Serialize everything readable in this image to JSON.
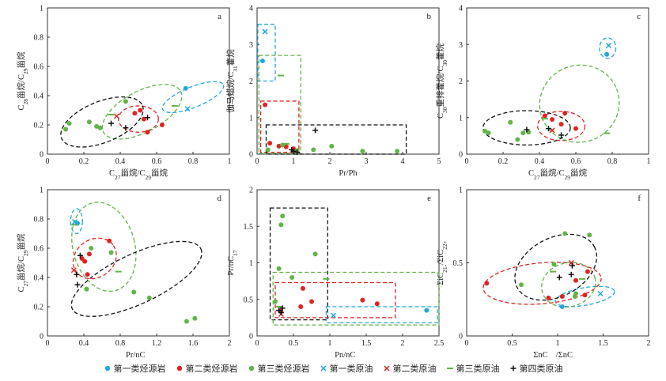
{
  "colors": {
    "type1": "#1ea7e1",
    "type2": "#e02424",
    "type3": "#62b446",
    "type4": "#111111"
  },
  "legend": [
    {
      "label": "第一类烃源岩",
      "marker": "dot",
      "color": "#1ea7e1"
    },
    {
      "label": "第二类烃源岩",
      "marker": "dot",
      "color": "#e02424"
    },
    {
      "label": "第三类烃源岩",
      "marker": "dot",
      "color": "#62b446"
    },
    {
      "label": "第一类原油",
      "marker": "x",
      "color": "#1ea7e1"
    },
    {
      "label": "第二类原油",
      "marker": "x",
      "color": "#e02424"
    },
    {
      "label": "第三类原油",
      "marker": "dash",
      "color": "#62b446"
    },
    {
      "label": "第四类原油",
      "marker": "plus",
      "color": "#111111"
    }
  ],
  "chart_data": [
    {
      "panel": "a",
      "type": "scatter",
      "xlabel": "C27甾烷/C29甾烷",
      "ylabel": "C28甾烷/C29甾烷",
      "xlim": [
        0,
        1
      ],
      "ylim": [
        0,
        1
      ],
      "xticks": [
        "0",
        "0.2",
        "0.4",
        "0.6",
        "0.8",
        "1"
      ],
      "yticks": [
        "0",
        "0.2",
        "0.4",
        "0.6",
        "0.8",
        "1"
      ],
      "points": [
        {
          "s": "type1",
          "m": "dot",
          "x": 0.76,
          "y": 0.45
        },
        {
          "s": "type1",
          "m": "x",
          "x": 0.77,
          "y": 0.31
        },
        {
          "s": "type2",
          "m": "dot",
          "x": 0.48,
          "y": 0.28
        },
        {
          "s": "type2",
          "m": "dot",
          "x": 0.51,
          "y": 0.3
        },
        {
          "s": "type2",
          "m": "dot",
          "x": 0.53,
          "y": 0.24
        },
        {
          "s": "type2",
          "m": "dot",
          "x": 0.63,
          "y": 0.2
        },
        {
          "s": "type2",
          "m": "dot",
          "x": 0.55,
          "y": 0.15
        },
        {
          "s": "type2",
          "m": "x",
          "x": 0.38,
          "y": 0.26
        },
        {
          "s": "type3",
          "m": "dot",
          "x": 0.1,
          "y": 0.17
        },
        {
          "s": "type3",
          "m": "dot",
          "x": 0.12,
          "y": 0.21
        },
        {
          "s": "type3",
          "m": "dot",
          "x": 0.23,
          "y": 0.22
        },
        {
          "s": "type3",
          "m": "dot",
          "x": 0.27,
          "y": 0.19
        },
        {
          "s": "type3",
          "m": "dot",
          "x": 0.29,
          "y": 0.18
        },
        {
          "s": "type3",
          "m": "dot",
          "x": 0.43,
          "y": 0.36
        },
        {
          "s": "type3",
          "m": "dash",
          "x": 0.35,
          "y": 0.27
        },
        {
          "s": "type3",
          "m": "dash",
          "x": 0.7,
          "y": 0.33
        },
        {
          "s": "type4",
          "m": "plus",
          "x": 0.35,
          "y": 0.21
        },
        {
          "s": "type4",
          "m": "plus",
          "x": 0.43,
          "y": 0.18
        },
        {
          "s": "type4",
          "m": "plus",
          "x": 0.55,
          "y": 0.25
        }
      ],
      "ellipses": [
        {
          "s": "type1",
          "cx": 0.8,
          "cy": 0.39,
          "rx": 0.18,
          "ry": 0.07,
          "rot": -22
        },
        {
          "s": "type2",
          "cx": 0.5,
          "cy": 0.24,
          "rx": 0.11,
          "ry": 0.09,
          "rot": 0
        },
        {
          "s": "type3",
          "cx": 0.52,
          "cy": 0.29,
          "rx": 0.24,
          "ry": 0.14,
          "rot": -28
        },
        {
          "s": "type4",
          "cx": 0.3,
          "cy": 0.22,
          "rx": 0.24,
          "ry": 0.14,
          "rot": -22
        }
      ]
    },
    {
      "panel": "b",
      "type": "scatter",
      "xlabel": "Pr/Ph",
      "ylabel": "伽马蜡烷/C31藿烷",
      "xlim": [
        0,
        5
      ],
      "ylim": [
        0,
        4
      ],
      "xticks": [
        "0",
        "1",
        "2",
        "3",
        "4",
        "5"
      ],
      "yticks": [
        "0",
        "1",
        "2",
        "3",
        "4"
      ],
      "points": [
        {
          "s": "type1",
          "m": "dot",
          "x": 0.15,
          "y": 2.55
        },
        {
          "s": "type1",
          "m": "x",
          "x": 0.22,
          "y": 3.35
        },
        {
          "s": "type2",
          "m": "dot",
          "x": 0.22,
          "y": 1.35
        },
        {
          "s": "type2",
          "m": "dot",
          "x": 0.35,
          "y": 0.3
        },
        {
          "s": "type2",
          "m": "dot",
          "x": 0.6,
          "y": 0.22
        },
        {
          "s": "type2",
          "m": "dot",
          "x": 0.8,
          "y": 0.2
        },
        {
          "s": "type2",
          "m": "dot",
          "x": 1.0,
          "y": 0.15
        },
        {
          "s": "type3",
          "m": "dot",
          "x": 0.3,
          "y": 0.12
        },
        {
          "s": "type3",
          "m": "dot",
          "x": 0.7,
          "y": 0.25
        },
        {
          "s": "type3",
          "m": "dot",
          "x": 1.1,
          "y": 0.1
        },
        {
          "s": "type3",
          "m": "dot",
          "x": 1.55,
          "y": 0.12
        },
        {
          "s": "type3",
          "m": "dot",
          "x": 2.05,
          "y": 0.22
        },
        {
          "s": "type3",
          "m": "dot",
          "x": 2.9,
          "y": 0.08
        },
        {
          "s": "type3",
          "m": "dot",
          "x": 3.85,
          "y": 0.08
        },
        {
          "s": "type3",
          "m": "dash",
          "x": 0.65,
          "y": 2.15
        },
        {
          "s": "type3",
          "m": "dash",
          "x": 0.8,
          "y": 0.28
        },
        {
          "s": "type4",
          "m": "plus",
          "x": 0.95,
          "y": 0.12
        },
        {
          "s": "type4",
          "m": "plus",
          "x": 1.0,
          "y": 0.08
        },
        {
          "s": "type4",
          "m": "plus",
          "x": 1.1,
          "y": 0.05
        },
        {
          "s": "type4",
          "m": "plus",
          "x": 1.6,
          "y": 0.65
        }
      ],
      "boxes": [
        {
          "s": "type1",
          "x0": 0.02,
          "x1": 0.5,
          "y0": 2.0,
          "y1": 3.55
        },
        {
          "s": "type3",
          "x0": 0.05,
          "x1": 1.2,
          "y0": 0.02,
          "y1": 2.7
        },
        {
          "s": "type2",
          "x0": 0.1,
          "x1": 1.15,
          "y0": 0.05,
          "y1": 1.45
        },
        {
          "s": "type4",
          "x0": 0.25,
          "x1": 4.1,
          "y0": 0.0,
          "y1": 0.8
        }
      ]
    },
    {
      "panel": "c",
      "type": "scatter",
      "xlabel": "C27甾烷/C29甾烷",
      "ylabel": "C30重排藿烷/C30藿烷",
      "xlim": [
        0,
        1
      ],
      "ylim": [
        0,
        4
      ],
      "xticks": [
        "0",
        "0.2",
        "0.4",
        "0.6",
        "0.8",
        "1"
      ],
      "yticks": [
        "0",
        "1",
        "2",
        "3",
        "4"
      ],
      "points": [
        {
          "s": "type1",
          "m": "dot",
          "x": 0.77,
          "y": 2.73
        },
        {
          "s": "type1",
          "m": "x",
          "x": 0.78,
          "y": 2.97
        },
        {
          "s": "type2",
          "m": "dot",
          "x": 0.43,
          "y": 1.05
        },
        {
          "s": "type2",
          "m": "dot",
          "x": 0.47,
          "y": 0.95
        },
        {
          "s": "type2",
          "m": "dot",
          "x": 0.52,
          "y": 0.82
        },
        {
          "s": "type2",
          "m": "dot",
          "x": 0.54,
          "y": 1.12
        },
        {
          "s": "type2",
          "m": "dot",
          "x": 0.6,
          "y": 0.7
        },
        {
          "s": "type2",
          "m": "x",
          "x": 0.47,
          "y": 0.65
        },
        {
          "s": "type3",
          "m": "dot",
          "x": 0.1,
          "y": 0.63
        },
        {
          "s": "type3",
          "m": "dot",
          "x": 0.12,
          "y": 0.58
        },
        {
          "s": "type3",
          "m": "dot",
          "x": 0.24,
          "y": 0.87
        },
        {
          "s": "type3",
          "m": "dot",
          "x": 0.28,
          "y": 0.4
        },
        {
          "s": "type3",
          "m": "dot",
          "x": 0.31,
          "y": 0.58
        },
        {
          "s": "type3",
          "m": "dot",
          "x": 0.34,
          "y": 0.6
        },
        {
          "s": "type3",
          "m": "dash",
          "x": 0.43,
          "y": 0.97
        },
        {
          "s": "type3",
          "m": "dash",
          "x": 0.77,
          "y": 0.57
        },
        {
          "s": "type4",
          "m": "plus",
          "x": 0.33,
          "y": 0.67
        },
        {
          "s": "type4",
          "m": "plus",
          "x": 0.45,
          "y": 0.7
        },
        {
          "s": "type4",
          "m": "plus",
          "x": 0.52,
          "y": 0.52
        }
      ],
      "ellipses": [
        {
          "s": "type1",
          "cx": 0.775,
          "cy": 2.9,
          "rx": 0.045,
          "ry": 0.28,
          "rot": 0
        },
        {
          "s": "type2",
          "cx": 0.52,
          "cy": 0.77,
          "rx": 0.13,
          "ry": 0.4,
          "rot": 0
        },
        {
          "s": "type3",
          "cx": 0.62,
          "cy": 1.38,
          "rx": 0.22,
          "ry": 1.05,
          "rot": -22
        },
        {
          "s": "type4",
          "cx": 0.33,
          "cy": 0.72,
          "rx": 0.24,
          "ry": 0.47,
          "rot": 0
        }
      ]
    },
    {
      "panel": "d",
      "type": "scatter",
      "xlabel": "Pr/nC17",
      "ylabel": "C27甾烷/C29甾烷",
      "xlim": [
        0,
        2
      ],
      "ylim": [
        0,
        1
      ],
      "xticks": [
        "0",
        "0.4",
        "0.8",
        "1.2",
        "1.6",
        "2"
      ],
      "yticks": [
        "0",
        "0.2",
        "0.4",
        "0.6",
        "0.8",
        "1"
      ],
      "points": [
        {
          "s": "type1",
          "m": "dot",
          "x": 0.33,
          "y": 0.77
        },
        {
          "s": "type1",
          "m": "x",
          "x": 0.3,
          "y": 0.78
        },
        {
          "s": "type2",
          "m": "dot",
          "x": 0.38,
          "y": 0.53
        },
        {
          "s": "type2",
          "m": "dot",
          "x": 0.41,
          "y": 0.51
        },
        {
          "s": "type2",
          "m": "dot",
          "x": 0.44,
          "y": 0.42
        },
        {
          "s": "type2",
          "m": "dot",
          "x": 0.46,
          "y": 0.56
        },
        {
          "s": "type2",
          "m": "dot",
          "x": 0.68,
          "y": 0.65
        },
        {
          "s": "type2",
          "m": "x",
          "x": 0.29,
          "y": 0.45
        },
        {
          "s": "type3",
          "m": "dot",
          "x": 0.43,
          "y": 0.32
        },
        {
          "s": "type3",
          "m": "dot",
          "x": 0.48,
          "y": 0.6
        },
        {
          "s": "type3",
          "m": "dot",
          "x": 0.7,
          "y": 0.57
        },
        {
          "s": "type3",
          "m": "dot",
          "x": 0.95,
          "y": 0.3
        },
        {
          "s": "type3",
          "m": "dot",
          "x": 1.12,
          "y": 0.26
        },
        {
          "s": "type3",
          "m": "dot",
          "x": 1.53,
          "y": 0.1
        },
        {
          "s": "type3",
          "m": "dot",
          "x": 1.62,
          "y": 0.12
        },
        {
          "s": "type3",
          "m": "dash",
          "x": 0.3,
          "y": 0.76
        },
        {
          "s": "type3",
          "m": "dash",
          "x": 0.78,
          "y": 0.44
        },
        {
          "s": "type4",
          "m": "plus",
          "x": 0.32,
          "y": 0.42
        },
        {
          "s": "type4",
          "m": "plus",
          "x": 0.33,
          "y": 0.35
        },
        {
          "s": "type4",
          "m": "plus",
          "x": 0.36,
          "y": 0.55
        }
      ],
      "ellipses": [
        {
          "s": "type1",
          "cx": 0.32,
          "cy": 0.785,
          "rx": 0.065,
          "ry": 0.085,
          "rot": 0
        },
        {
          "s": "type2",
          "cx": 0.52,
          "cy": 0.53,
          "rx": 0.25,
          "ry": 0.13,
          "rot": -35
        },
        {
          "s": "type3",
          "cx": 0.62,
          "cy": 0.61,
          "rx": 0.34,
          "ry": 0.31,
          "rot": -15
        },
        {
          "s": "type4",
          "cx": 0.98,
          "cy": 0.39,
          "rx": 0.78,
          "ry": 0.17,
          "rot": -25
        }
      ]
    },
    {
      "panel": "e",
      "type": "scatter",
      "xlabel": "Pn/nC18",
      "ylabel": "Pr/nC17",
      "xlim": [
        0,
        2.5
      ],
      "ylim": [
        0,
        2
      ],
      "xticks": [
        "0",
        "0.5",
        "1",
        "1.5",
        "2",
        "2.5"
      ],
      "yticks": [
        "0",
        "0.5",
        "1",
        "1.5",
        "2"
      ],
      "points": [
        {
          "s": "type1",
          "m": "dot",
          "x": 2.33,
          "y": 0.35
        },
        {
          "s": "type1",
          "m": "x",
          "x": 1.05,
          "y": 0.28
        },
        {
          "s": "type2",
          "m": "dot",
          "x": 0.32,
          "y": 0.34
        },
        {
          "s": "type2",
          "m": "dot",
          "x": 0.6,
          "y": 0.4
        },
        {
          "s": "type2",
          "m": "dot",
          "x": 0.63,
          "y": 0.65
        },
        {
          "s": "type2",
          "m": "dot",
          "x": 0.75,
          "y": 0.47
        },
        {
          "s": "type2",
          "m": "dot",
          "x": 1.45,
          "y": 0.49
        },
        {
          "s": "type2",
          "m": "dot",
          "x": 1.65,
          "y": 0.44
        },
        {
          "s": "type2",
          "m": "x",
          "x": 0.33,
          "y": 0.3
        },
        {
          "s": "type3",
          "m": "dot",
          "x": 0.25,
          "y": 0.47
        },
        {
          "s": "type3",
          "m": "dot",
          "x": 0.3,
          "y": 0.92
        },
        {
          "s": "type3",
          "m": "dot",
          "x": 0.33,
          "y": 1.52
        },
        {
          "s": "type3",
          "m": "dot",
          "x": 0.35,
          "y": 1.64
        },
        {
          "s": "type3",
          "m": "dot",
          "x": 0.48,
          "y": 0.8
        },
        {
          "s": "type3",
          "m": "dot",
          "x": 0.8,
          "y": 1.12
        },
        {
          "s": "type3",
          "m": "dash",
          "x": 0.3,
          "y": 0.4
        },
        {
          "s": "type3",
          "m": "dash",
          "x": 0.95,
          "y": 0.78
        },
        {
          "s": "type4",
          "m": "plus",
          "x": 0.3,
          "y": 0.35
        },
        {
          "s": "type4",
          "m": "plus",
          "x": 0.33,
          "y": 0.32
        },
        {
          "s": "type4",
          "m": "plus",
          "x": 0.35,
          "y": 0.38
        }
      ],
      "boxes": [
        {
          "s": "type4",
          "x0": 0.18,
          "x1": 0.97,
          "y0": 0.22,
          "y1": 1.75
        },
        {
          "s": "type3",
          "x0": 0.22,
          "x1": 2.5,
          "y0": 0.15,
          "y1": 0.87
        },
        {
          "s": "type2",
          "x0": 0.25,
          "x1": 1.9,
          "y0": 0.25,
          "y1": 0.73
        },
        {
          "s": "type1",
          "x0": 0.95,
          "x1": 2.48,
          "y0": 0.18,
          "y1": 0.4
        }
      ]
    },
    {
      "panel": "f",
      "type": "scatter",
      "xlabel": "ΣnC21-/ΣnC22+",
      "ylabel": "ΣiC21-/ΣiC22+",
      "xlim": [
        0,
        2
      ],
      "ylim": [
        0,
        1
      ],
      "xticks": [
        "0",
        "0.5",
        "1",
        "1.5",
        "2"
      ],
      "yticks": [
        "0",
        "0.5",
        "1"
      ],
      "points": [
        {
          "s": "type1",
          "m": "dot",
          "x": 1.05,
          "y": 0.2
        },
        {
          "s": "type1",
          "m": "x",
          "x": 1.47,
          "y": 0.29
        },
        {
          "s": "type2",
          "m": "dot",
          "x": 0.22,
          "y": 0.36
        },
        {
          "s": "type2",
          "m": "dot",
          "x": 0.9,
          "y": 0.26
        },
        {
          "s": "type2",
          "m": "dot",
          "x": 1.05,
          "y": 0.27
        },
        {
          "s": "type2",
          "m": "dot",
          "x": 1.2,
          "y": 0.38
        },
        {
          "s": "type2",
          "m": "dot",
          "x": 1.3,
          "y": 0.28
        },
        {
          "s": "type2",
          "m": "dot",
          "x": 1.33,
          "y": 0.44
        },
        {
          "s": "type2",
          "m": "x",
          "x": 1.15,
          "y": 0.5
        },
        {
          "s": "type3",
          "m": "dot",
          "x": 0.6,
          "y": 0.35
        },
        {
          "s": "type3",
          "m": "dot",
          "x": 0.96,
          "y": 0.49
        },
        {
          "s": "type3",
          "m": "dot",
          "x": 1.08,
          "y": 0.7
        },
        {
          "s": "type3",
          "m": "dot",
          "x": 1.19,
          "y": 0.27
        },
        {
          "s": "type3",
          "m": "dot",
          "x": 1.2,
          "y": 0.29
        },
        {
          "s": "type3",
          "m": "dot",
          "x": 1.35,
          "y": 0.69
        },
        {
          "s": "type3",
          "m": "dash",
          "x": 0.95,
          "y": 0.44
        },
        {
          "s": "type3",
          "m": "dash",
          "x": 1.27,
          "y": 0.39
        },
        {
          "s": "type4",
          "m": "plus",
          "x": 1.02,
          "y": 0.4
        },
        {
          "s": "type4",
          "m": "plus",
          "x": 1.15,
          "y": 0.42
        },
        {
          "s": "type4",
          "m": "plus",
          "x": 1.16,
          "y": 0.48
        }
      ],
      "ellipses": [
        {
          "s": "type1",
          "cx": 1.3,
          "cy": 0.27,
          "rx": 0.33,
          "ry": 0.06,
          "rot": -10
        },
        {
          "s": "type2",
          "cx": 0.83,
          "cy": 0.36,
          "rx": 0.65,
          "ry": 0.14,
          "rot": -5
        },
        {
          "s": "type3",
          "cx": 1.12,
          "cy": 0.35,
          "rx": 0.3,
          "ry": 0.15,
          "rot": -15
        },
        {
          "s": "type4",
          "cx": 0.98,
          "cy": 0.47,
          "rx": 0.48,
          "ry": 0.2,
          "rot": -28
        }
      ]
    }
  ]
}
